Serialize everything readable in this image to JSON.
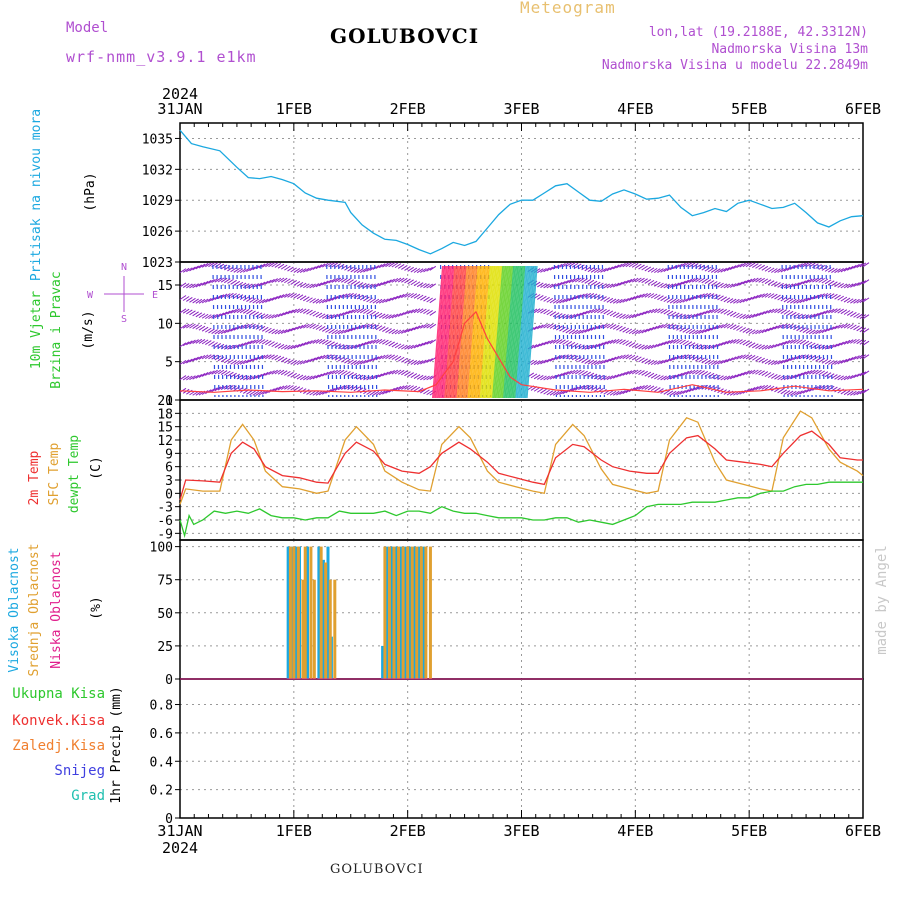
{
  "header": {
    "model_label": "Model",
    "model_name": "wrf-nmm_v3.9.1 e1km",
    "station": "GOLUBOVCI",
    "meteogram_label": "Meteogram",
    "lonlat": "lon,lat (19.2188E, 42.3312N)",
    "elevation": "Nadmorska Visina 13m",
    "model_elevation": "Nadmorska Visina u modelu 22.2849m",
    "credit": "made by Angel",
    "footer_station": "GOLUBOVCI"
  },
  "time_axis": {
    "year": "2024",
    "labels": [
      "31JAN",
      "1FEB",
      "2FEB",
      "3FEB",
      "4FEB",
      "5FEB",
      "6FEB"
    ],
    "range_days": [
      0,
      6
    ]
  },
  "chart_data": [
    {
      "type": "line",
      "title": "Pritisak na nivou mora",
      "ylabel": "(hPa)",
      "ylim": [
        1023,
        1036.5
      ],
      "yticks": [
        1023,
        1026,
        1029,
        1032,
        1035
      ],
      "grid": true,
      "series": [
        {
          "color": "#1ba8e0",
          "x": [
            0,
            0.1,
            0.2,
            0.35,
            0.5,
            0.6,
            0.7,
            0.8,
            0.9,
            1.0,
            1.1,
            1.2,
            1.3,
            1.45,
            1.5,
            1.6,
            1.7,
            1.8,
            1.9,
            2.0,
            2.1,
            2.2,
            2.3,
            2.4,
            2.5,
            2.6,
            2.7,
            2.8,
            2.9,
            3.0,
            3.1,
            3.2,
            3.3,
            3.4,
            3.5,
            3.6,
            3.7,
            3.8,
            3.9,
            4.0,
            4.1,
            4.2,
            4.3,
            4.4,
            4.5,
            4.6,
            4.7,
            4.8,
            4.9,
            5.0,
            5.1,
            5.2,
            5.3,
            5.4,
            5.5,
            5.6,
            5.7,
            5.8,
            5.9,
            6.0
          ],
          "y": [
            1035.8,
            1034.5,
            1034.2,
            1033.8,
            1032.2,
            1031.2,
            1031.1,
            1031.3,
            1031.0,
            1030.6,
            1029.7,
            1029.2,
            1029.0,
            1028.8,
            1027.8,
            1026.6,
            1025.8,
            1025.2,
            1025.1,
            1024.7,
            1024.2,
            1023.8,
            1024.3,
            1024.9,
            1024.6,
            1025.0,
            1026.3,
            1027.6,
            1028.6,
            1029.0,
            1029.0,
            1029.7,
            1030.4,
            1030.6,
            1029.8,
            1029.0,
            1028.9,
            1029.6,
            1030.0,
            1029.6,
            1029.1,
            1029.2,
            1029.5,
            1028.3,
            1027.5,
            1027.8,
            1028.2,
            1027.9,
            1028.7,
            1029.0,
            1028.6,
            1028.2,
            1028.3,
            1028.7,
            1027.8,
            1026.8,
            1026.4,
            1027.0,
            1027.4,
            1027.5
          ]
        }
      ]
    },
    {
      "type": "scatter",
      "title": "10m Vjetar Brzina i Pravac",
      "ylabel": "(m/s)",
      "ylim": [
        0,
        18
      ],
      "yticks": [
        0,
        5,
        10,
        15
      ],
      "direction_legend": {
        "n": "N",
        "s": "S",
        "w": "W",
        "e": "E"
      },
      "grid": true,
      "series": [
        {
          "color": "#ff4040",
          "x": [
            0,
            0.3,
            0.6,
            0.9,
            1.2,
            1.5,
            1.8,
            2.1,
            2.25,
            2.4,
            2.5,
            2.6,
            2.7,
            2.8,
            2.9,
            3.0,
            3.3,
            3.6,
            3.9,
            4.2,
            4.5,
            4.8,
            5.1,
            5.4,
            5.7,
            6.0
          ],
          "y": [
            1.2,
            1.0,
            1.3,
            1.1,
            1.2,
            1.0,
            1.3,
            1.1,
            2.0,
            5.0,
            10.0,
            11.5,
            8.0,
            5.5,
            3.0,
            2.0,
            1.3,
            1.0,
            1.4,
            1.0,
            2.0,
            1.0,
            1.2,
            1.8,
            1.2,
            1.4
          ]
        }
      ]
    },
    {
      "type": "line",
      "title": "2m Temp / SFC Temp / dewpt Temp",
      "ylabel": "(C)",
      "ylim": [
        -10.5,
        21
      ],
      "yticks": [
        -9,
        -6,
        -3,
        0,
        3,
        6,
        9,
        12,
        15,
        18,
        21
      ],
      "grid": true,
      "series": [
        {
          "name": "2m Temp",
          "color": "#ee3030",
          "x": [
            0,
            0.05,
            0.2,
            0.35,
            0.45,
            0.55,
            0.65,
            0.75,
            0.9,
            1.05,
            1.2,
            1.3,
            1.45,
            1.55,
            1.7,
            1.8,
            1.95,
            2.1,
            2.2,
            2.3,
            2.45,
            2.55,
            2.7,
            2.8,
            2.95,
            3.1,
            3.2,
            3.3,
            3.45,
            3.55,
            3.7,
            3.8,
            3.95,
            4.1,
            4.2,
            4.3,
            4.45,
            4.55,
            4.7,
            4.8,
            4.95,
            5.1,
            5.2,
            5.3,
            5.45,
            5.55,
            5.7,
            5.8,
            5.95,
            6.0
          ],
          "y": [
            -1.5,
            3.0,
            2.8,
            2.5,
            9.0,
            11.5,
            10.0,
            6.0,
            4.0,
            3.5,
            2.5,
            2.3,
            9.0,
            11.5,
            9.5,
            6.5,
            5.0,
            4.5,
            6.0,
            9.0,
            11.5,
            10.0,
            7.0,
            4.5,
            3.5,
            2.5,
            2.0,
            8.0,
            11.0,
            10.5,
            7.5,
            6.0,
            5.0,
            4.5,
            4.5,
            9.0,
            12.5,
            13.0,
            10.0,
            7.5,
            7.0,
            6.5,
            6.0,
            9.0,
            13.0,
            14.0,
            11.0,
            8.0,
            7.5,
            7.5
          ]
        },
        {
          "name": "SFC Temp",
          "color": "#e0a030",
          "x": [
            0,
            0.05,
            0.2,
            0.35,
            0.45,
            0.55,
            0.65,
            0.75,
            0.9,
            1.05,
            1.2,
            1.3,
            1.45,
            1.55,
            1.7,
            1.8,
            1.95,
            2.1,
            2.2,
            2.3,
            2.45,
            2.55,
            2.7,
            2.8,
            2.95,
            3.1,
            3.2,
            3.3,
            3.45,
            3.55,
            3.7,
            3.8,
            3.95,
            4.1,
            4.2,
            4.3,
            4.45,
            4.55,
            4.7,
            4.8,
            4.95,
            5.1,
            5.2,
            5.3,
            5.45,
            5.55,
            5.7,
            5.8,
            5.95,
            6.0
          ],
          "y": [
            -2.5,
            1.0,
            0.5,
            0.5,
            12.0,
            15.5,
            12.0,
            5.0,
            1.5,
            1.0,
            0.0,
            0.5,
            12.0,
            15.0,
            11.0,
            5.0,
            2.5,
            0.8,
            0.5,
            11.0,
            15.0,
            12.5,
            5.0,
            2.5,
            1.5,
            0.5,
            0.0,
            11.0,
            15.5,
            13.0,
            5.5,
            2.0,
            1.0,
            0.0,
            0.5,
            12.0,
            17.0,
            16.0,
            7.0,
            3.0,
            2.0,
            1.0,
            0.5,
            12.5,
            18.5,
            17.0,
            10.0,
            7.0,
            5.0,
            4.0
          ]
        },
        {
          "name": "dewpt Temp",
          "color": "#2ec82e",
          "x": [
            0,
            0.04,
            0.08,
            0.12,
            0.2,
            0.3,
            0.4,
            0.5,
            0.6,
            0.7,
            0.8,
            0.9,
            1.0,
            1.1,
            1.2,
            1.3,
            1.4,
            1.5,
            1.6,
            1.7,
            1.8,
            1.9,
            2.0,
            2.1,
            2.2,
            2.3,
            2.4,
            2.5,
            2.6,
            2.7,
            2.8,
            2.9,
            3.0,
            3.1,
            3.2,
            3.3,
            3.4,
            3.5,
            3.6,
            3.7,
            3.8,
            3.9,
            4.0,
            4.1,
            4.2,
            4.3,
            4.4,
            4.5,
            4.6,
            4.7,
            4.8,
            4.9,
            5.0,
            5.1,
            5.2,
            5.3,
            5.4,
            5.5,
            5.6,
            5.7,
            5.8,
            5.9,
            6.0
          ],
          "y": [
            -6.0,
            -9.5,
            -5.0,
            -7.0,
            -6.0,
            -4.0,
            -4.5,
            -4.0,
            -4.5,
            -3.5,
            -5.0,
            -5.5,
            -5.5,
            -6.0,
            -5.5,
            -5.5,
            -4.0,
            -4.5,
            -4.5,
            -4.5,
            -4.0,
            -5.0,
            -4.0,
            -4.0,
            -4.5,
            -3.0,
            -4.0,
            -4.5,
            -4.5,
            -5.0,
            -5.5,
            -5.5,
            -5.5,
            -6.0,
            -6.0,
            -5.5,
            -5.5,
            -6.5,
            -6.0,
            -6.5,
            -7.0,
            -6.0,
            -5.0,
            -3.0,
            -2.5,
            -2.5,
            -2.5,
            -2.0,
            -2.0,
            -2.0,
            -1.5,
            -1.0,
            -1.0,
            0.0,
            0.5,
            0.5,
            1.5,
            2.0,
            2.0,
            2.5,
            2.5,
            2.5,
            2.5
          ]
        }
      ]
    },
    {
      "type": "bar",
      "title": "Visoka / Srednja / Niska Oblacnost",
      "ylabel": "(%)",
      "ylim": [
        0,
        105
      ],
      "yticks": [
        0,
        25,
        50,
        75,
        100
      ],
      "grid": true,
      "series": [
        {
          "name": "Visoka Oblacnost",
          "color": "#1ba8e0",
          "x": [
            0.95,
            0.98,
            1.02,
            1.05,
            1.12,
            1.22,
            1.26,
            1.3,
            1.33,
            1.78,
            1.82,
            1.86,
            1.9,
            1.94,
            1.98,
            2.02,
            2.06,
            2.1,
            2.14
          ],
          "y": [
            100,
            100,
            100,
            100,
            100,
            100,
            90,
            100,
            32,
            25,
            100,
            100,
            100,
            100,
            100,
            100,
            100,
            100,
            100
          ]
        },
        {
          "name": "Srednja Oblacnost",
          "color": "#e0a030",
          "x": [
            0.97,
            1.0,
            1.04,
            1.08,
            1.1,
            1.15,
            1.18,
            1.24,
            1.28,
            1.32,
            1.36,
            1.8,
            1.84,
            1.88,
            1.92,
            1.96,
            2.0,
            2.04,
            2.08,
            2.12,
            2.16,
            2.2
          ],
          "y": [
            100,
            100,
            100,
            75,
            100,
            100,
            75,
            100,
            88,
            75,
            75,
            100,
            100,
            100,
            100,
            100,
            100,
            100,
            100,
            100,
            100,
            100
          ]
        },
        {
          "name": "Niska Oblacnost",
          "color": "#e01e8c",
          "x": [],
          "y": []
        }
      ]
    },
    {
      "type": "bar",
      "title": "1hr Precip",
      "ylabel": "1hr Precip (mm)",
      "ylim": [
        0,
        0.98
      ],
      "yticks": [
        0,
        0.2,
        0.4,
        0.6,
        0.8
      ],
      "grid": true,
      "legend": [
        {
          "name": "Ukupna Kisa",
          "color": "#2ec82e"
        },
        {
          "name": "Konvek.Kisa",
          "color": "#ee3030"
        },
        {
          "name": "Zaledj.Kisa",
          "color": "#f08030"
        },
        {
          "name": "Snijeg",
          "color": "#4040e0"
        },
        {
          "name": "Grad",
          "color": "#20c0b0"
        }
      ],
      "series": []
    }
  ],
  "left_labels": {
    "pressure": {
      "text": "Pritisak na nivou mora",
      "color": "#1ba8e0"
    },
    "pressure_unit": "(hPa)",
    "wind1": {
      "text": "10m Vjetar",
      "color": "#2ec82e"
    },
    "wind2": {
      "text": "Brzina i Pravac",
      "color": "#2ec82e"
    },
    "wind_unit": "(m/s)",
    "t2m": {
      "text": "2m Temp",
      "color": "#ee3030"
    },
    "tsfc": {
      "text": "SFC Temp",
      "color": "#e0a030"
    },
    "tdew": {
      "text": "dewpt Temp",
      "color": "#2ec82e"
    },
    "temp_unit": "(C)",
    "cl_high": {
      "text": "Visoka Oblacnost",
      "color": "#1ba8e0"
    },
    "cl_mid": {
      "text": "Srednja Oblacnost",
      "color": "#e0a030"
    },
    "cl_low": {
      "text": "Niska Oblacnost",
      "color": "#e01e8c"
    },
    "cloud_unit": "(%)",
    "precip_unit": "1hr Precip (mm)"
  },
  "colors": {
    "purple": "#b04fd0",
    "meteogram": "#e8c070",
    "wind_barbs": "#8a20c0",
    "wind_barbs_alt": "#3050e0",
    "credit": "#c8c8c8"
  }
}
